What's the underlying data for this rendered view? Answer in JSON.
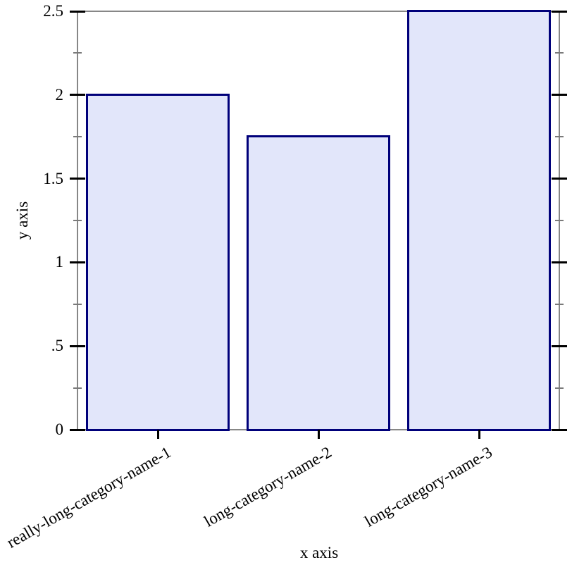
{
  "chart_data": {
    "type": "bar",
    "title": "",
    "xlabel": "x axis",
    "ylabel": "y axis",
    "categories": [
      "really-long-category-name-1",
      "long-category-name-2",
      "long-category-name-3"
    ],
    "values": [
      2,
      1.75,
      2.5
    ],
    "ylim": [
      0,
      2.5
    ],
    "y_major_ticks": [
      {
        "value": 0,
        "label": "0"
      },
      {
        "value": 0.5,
        "label": ".5"
      },
      {
        "value": 1,
        "label": "1"
      },
      {
        "value": 1.5,
        "label": "1.5"
      },
      {
        "value": 2,
        "label": "2"
      },
      {
        "value": 2.5,
        "label": "2.5"
      }
    ],
    "y_minor_ticks": [
      0.25,
      0.75,
      1.25,
      1.75,
      2.25
    ],
    "grid": false,
    "legend": "none",
    "category_label_rotation_deg": -30,
    "colors": {
      "bar_fill": "#e2e6fa",
      "bar_border": "#00007a",
      "axis_line": "#878787",
      "major_tick": "#000000",
      "minor_tick": "#7a7a7a",
      "text": "#000000",
      "background": "#ffffff"
    }
  }
}
